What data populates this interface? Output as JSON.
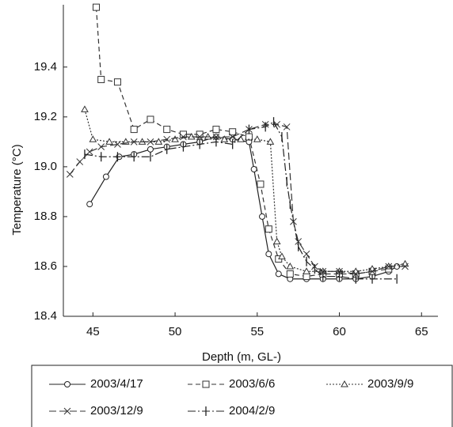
{
  "chart_data": {
    "type": "line",
    "xlabel": "Depth (m, GL-)",
    "ylabel": "Temperature (°C)",
    "xlim": [
      43.2,
      66
    ],
    "ylim": [
      18.4,
      19.65
    ],
    "xticks": [
      45,
      50,
      55,
      60,
      65
    ],
    "yticks": [
      18.4,
      18.6,
      18.8,
      {
        "value": 19,
        "label": "19.0"
      },
      19.2,
      19.4
    ],
    "series": [
      {
        "name": "2003/4/17",
        "color": "#222222",
        "marker": "circle",
        "dash": "solid",
        "x": [
          44.8,
          45.8,
          46.6,
          47.5,
          48.5,
          49.5,
          50.5,
          51.5,
          52.5,
          53.5,
          54.5,
          54.8,
          55.3,
          55.7,
          56.3,
          57,
          58,
          59,
          60,
          61,
          62,
          63,
          63.5
        ],
        "values": [
          18.85,
          18.96,
          19.04,
          19.05,
          19.07,
          19.08,
          19.09,
          19.1,
          19.12,
          19.11,
          19.1,
          18.99,
          18.8,
          18.65,
          18.57,
          18.55,
          18.55,
          18.55,
          18.55,
          18.55,
          18.56,
          18.58,
          18.6
        ]
      },
      {
        "name": "2003/6/6",
        "color": "#333333",
        "marker": "square",
        "dash": "dashed",
        "x": [
          45.2,
          45.5,
          46.5,
          47.5,
          48.5,
          49.5,
          50.5,
          51.5,
          52.5,
          53.5,
          54.5,
          55.2,
          55.7,
          56.3,
          57,
          58,
          59,
          60,
          61,
          62,
          63
        ],
        "values": [
          19.64,
          19.35,
          19.34,
          19.15,
          19.19,
          19.15,
          19.13,
          19.13,
          19.15,
          19.14,
          19.12,
          18.93,
          18.75,
          18.63,
          18.57,
          18.56,
          18.57,
          18.57,
          18.57,
          18.58,
          18.59
        ]
      },
      {
        "name": "2003/9/9",
        "color": "#333333",
        "marker": "triangle",
        "dash": "dotted",
        "x": [
          44.5,
          45,
          46,
          47,
          48,
          49,
          50,
          51,
          52,
          53,
          54,
          55,
          55.8,
          56.2,
          56.5,
          57,
          58,
          59,
          60,
          61,
          62,
          63,
          64
        ],
        "values": [
          19.23,
          19.11,
          19.1,
          19.1,
          19.1,
          19.1,
          19.11,
          19.12,
          19.12,
          19.11,
          19.11,
          19.11,
          19.1,
          18.7,
          18.64,
          18.6,
          18.58,
          18.58,
          18.58,
          18.58,
          18.59,
          18.6,
          18.61
        ]
      },
      {
        "name": "2003/12/9",
        "color": "#333333",
        "marker": "x",
        "dash": "longdash",
        "x": [
          43.6,
          44.2,
          44.8,
          45.5,
          46.5,
          47.5,
          48.5,
          49.5,
          50.5,
          51.5,
          52.5,
          53.5,
          54.5,
          55.5,
          56.2,
          56.8,
          57.2,
          57.5,
          58,
          58.5,
          59,
          60,
          61,
          62,
          63,
          64
        ],
        "values": [
          18.97,
          19.02,
          19.06,
          19.08,
          19.09,
          19.1,
          19.1,
          19.11,
          19.12,
          19.12,
          19.12,
          19.12,
          19.15,
          19.17,
          19.17,
          19.16,
          18.78,
          18.7,
          18.65,
          18.6,
          18.58,
          18.58,
          18.57,
          18.58,
          18.6,
          18.6
        ]
      },
      {
        "name": "2004/2/9",
        "color": "#222222",
        "marker": "bar",
        "dash": "dashdot",
        "x": [
          44.5,
          45.5,
          46.5,
          47.5,
          48.5,
          49.5,
          50.5,
          51.5,
          52.5,
          53.5,
          54.5,
          55.5,
          56,
          56.5,
          56.8,
          57,
          57.5,
          58,
          58.5,
          59,
          60,
          61,
          62,
          63.5
        ],
        "values": [
          19.05,
          19.04,
          19.04,
          19.04,
          19.04,
          19.07,
          19.08,
          19.09,
          19.1,
          19.09,
          19.15,
          19.16,
          19.18,
          19.12,
          18.94,
          18.85,
          18.68,
          18.62,
          18.59,
          18.56,
          18.56,
          18.55,
          18.55,
          18.55
        ]
      }
    ]
  }
}
